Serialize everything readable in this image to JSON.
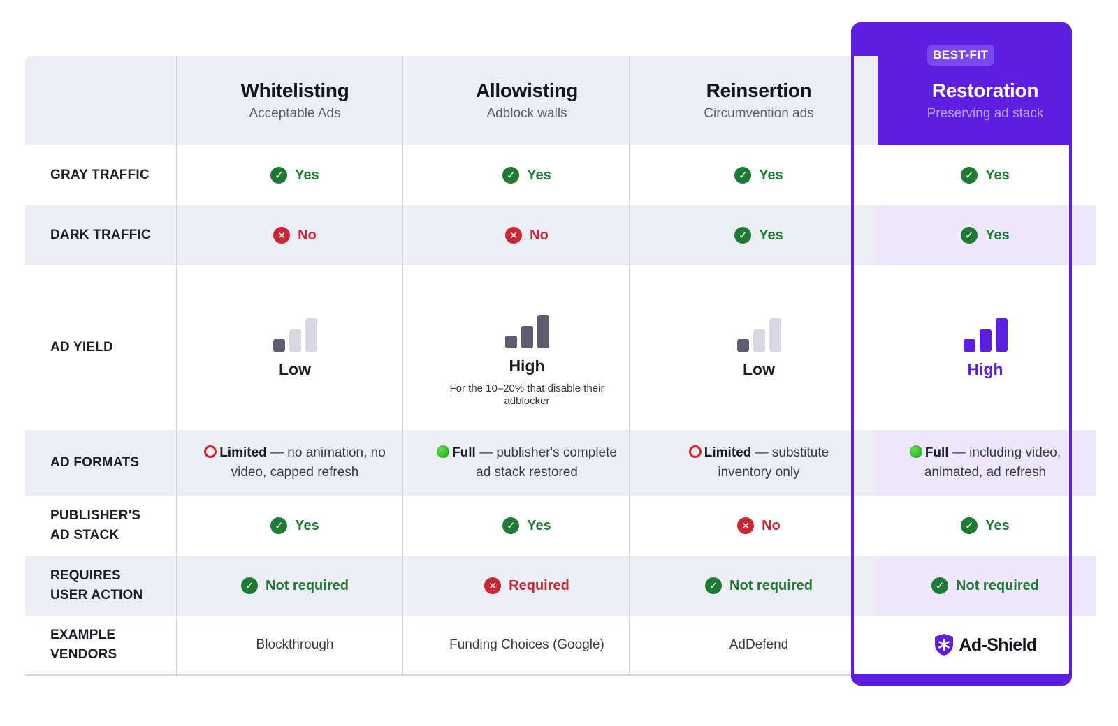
{
  "header": {
    "columns": [
      {
        "title": "Whitelisting",
        "subtitle": "Acceptable Ads"
      },
      {
        "title": "Allowisting",
        "subtitle": "Adblock walls"
      },
      {
        "title": "Reinsertion",
        "subtitle": "Circumvention ads"
      },
      {
        "title": "Restoration",
        "subtitle": "Preserving ad stack"
      }
    ],
    "badge": "BEST-FIT"
  },
  "rows": {
    "gray_traffic": {
      "label": "GRAY TRAFFIC",
      "values": [
        "Yes",
        "Yes",
        "Yes",
        "Yes"
      ]
    },
    "dark_traffic": {
      "label": "DARK TRAFFIC",
      "values": [
        "No",
        "No",
        "Yes",
        "Yes"
      ]
    },
    "ad_yield": {
      "label": "AD YIELD",
      "values": [
        "Low",
        "High",
        "Low",
        "High"
      ],
      "note": "For the 10–20% that disable their adblocker"
    },
    "ad_formats": {
      "label": "AD FORMATS",
      "cells": [
        {
          "level": "Limited",
          "desc": " — no animation, no video, capped refresh"
        },
        {
          "level": "Full",
          "desc": " — publisher's complete ad stack restored"
        },
        {
          "level": "Limited",
          "desc": " — substitute inventory only"
        },
        {
          "level": "Full",
          "desc": " — including video, animated, ad refresh"
        }
      ]
    },
    "ad_stack": {
      "label_line1": "PUBLISHER'S",
      "label_line2": "AD STACK",
      "values": [
        "Yes",
        "Yes",
        "No",
        "Yes"
      ]
    },
    "user_action": {
      "label_line1": "REQUIRES",
      "label_line2": "USER ACTION",
      "values": [
        "Not required",
        "Required",
        "Not required",
        "Not required"
      ]
    },
    "vendors": {
      "label_line1": "EXAMPLE",
      "label_line2": "VENDORS",
      "values": [
        "Blockthrough",
        "Funding Choices (Google)",
        "AdDefend"
      ],
      "brand": "Ad-Shield"
    }
  },
  "colors": {
    "accent": "#5d1ee0",
    "yes": "#1f7a33",
    "no": "#c92636",
    "bar_dark": "#5e5c6e",
    "bar_light": "#d8d7e2",
    "row_shade": "#ededf4",
    "best_shade": "#eee8fc"
  },
  "icons": {
    "yes": "check-circle-icon",
    "no": "x-circle-icon",
    "limited": "hollow-red-circle-icon",
    "full": "green-dot-icon",
    "yield": "signal-bars-icon",
    "brand": "shield-asterisk-icon"
  }
}
